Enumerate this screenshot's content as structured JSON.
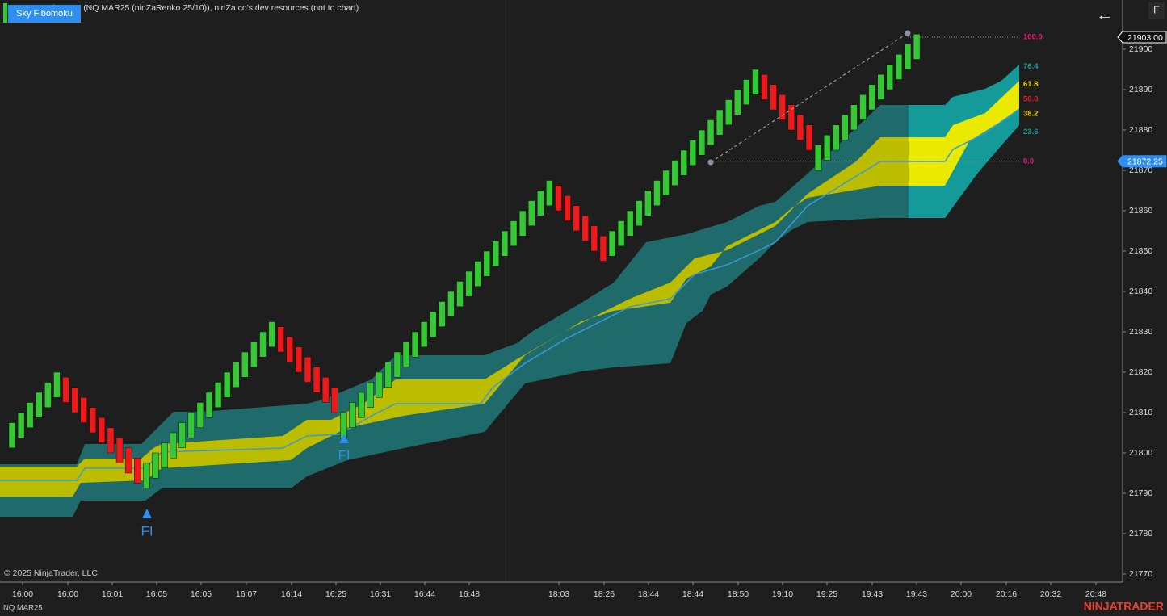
{
  "header": {
    "indicator_button": "Sky Fibomoku",
    "title": "ninZa.co (NQ MAR25 (ninZaRenko 25/10)), ninZa.co's dev resources (not to chart)"
  },
  "toolbar": {
    "back": "←",
    "f": "F"
  },
  "price_axis": {
    "ylim": [
      21768.2,
      21912.2
    ],
    "ticks": [
      21770,
      21780,
      21790,
      21800,
      21810,
      21820,
      21830,
      21840,
      21850,
      21860,
      21870,
      21880,
      21890,
      21900
    ],
    "flags": [
      {
        "value": 21903,
        "label": "21903.00"
      },
      {
        "value": 21872.25,
        "label": "21872.25"
      }
    ]
  },
  "time_axis": {
    "labels": [
      "16:00",
      "16:00",
      "16:01",
      "16:05",
      "16:05",
      "16:07",
      "16:14",
      "16:25",
      "16:31",
      "16:44",
      "16:48",
      "18:03",
      "18:26",
      "18:44",
      "18:44",
      "18:50",
      "19:10",
      "19:25",
      "19:43",
      "19:43",
      "20:00",
      "20:16",
      "20:32",
      "20:48"
    ]
  },
  "fib_levels": [
    {
      "value": 100,
      "label": "100.0",
      "color": "#e8187a"
    },
    {
      "value": 76.4,
      "label": "76.4",
      "color": "#1a9a9a"
    },
    {
      "value": 61.8,
      "label": "61.8",
      "color": "#f0d000"
    },
    {
      "value": 50,
      "label": "50.0",
      "color": "#e02424"
    },
    {
      "value": 38.2,
      "label": "38.2",
      "color": "#f0d000"
    },
    {
      "value": 23.6,
      "label": "23.6",
      "color": "#1a9a9a"
    },
    {
      "value": 0,
      "label": "0.0",
      "color": "#e8187a"
    }
  ],
  "candles": [
    [
      21801.25,
      21807.5
    ],
    [
      21803.75,
      21810
    ],
    [
      21806.25,
      21812.5
    ],
    [
      21808.75,
      21815
    ],
    [
      21811.25,
      21817.5
    ],
    [
      21813.75,
      21820
    ],
    [
      21818.75,
      21812.5
    ],
    [
      21816.25,
      21810
    ],
    [
      21813.75,
      21807.5
    ],
    [
      21811.25,
      21805
    ],
    [
      21808.75,
      21802.5
    ],
    [
      21806.25,
      21800
    ],
    [
      21803.75,
      21797.5
    ],
    [
      21801.25,
      21795
    ],
    [
      21798.75,
      21792.5
    ],
    [
      21791.25,
      21797.5
    ],
    [
      21793.75,
      21800
    ],
    [
      21796.25,
      21802.5
    ],
    [
      21798.75,
      21805
    ],
    [
      21801.25,
      21807.5
    ],
    [
      21803.75,
      21810
    ],
    [
      21806.25,
      21812.5
    ],
    [
      21808.75,
      21815
    ],
    [
      21811.25,
      21817.5
    ],
    [
      21813.75,
      21820
    ],
    [
      21816.25,
      21822.5
    ],
    [
      21818.75,
      21825
    ],
    [
      21821.25,
      21827.5
    ],
    [
      21823.75,
      21830
    ],
    [
      21826.25,
      21832.5
    ],
    [
      21831.25,
      21825
    ],
    [
      21828.75,
      21822.5
    ],
    [
      21826.25,
      21820
    ],
    [
      21823.75,
      21817.5
    ],
    [
      21821.25,
      21815
    ],
    [
      21818.75,
      21812.5
    ],
    [
      21816.25,
      21810
    ],
    [
      21803.75,
      21810
    ],
    [
      21806.25,
      21812.5
    ],
    [
      21808.75,
      21815
    ],
    [
      21811.25,
      21817.5
    ],
    [
      21813.75,
      21820
    ],
    [
      21816.25,
      21822.5
    ],
    [
      21818.75,
      21825
    ],
    [
      21821.25,
      21827.5
    ],
    [
      21823.75,
      21830
    ],
    [
      21826.25,
      21832.5
    ],
    [
      21828.75,
      21835
    ],
    [
      21831.25,
      21837.5
    ],
    [
      21833.75,
      21840
    ],
    [
      21836.25,
      21842.5
    ],
    [
      21838.75,
      21845
    ],
    [
      21841.25,
      21847.5
    ],
    [
      21843.75,
      21850
    ],
    [
      21846.25,
      21852.5
    ],
    [
      21848.75,
      21855
    ],
    [
      21851.25,
      21857.5
    ],
    [
      21853.75,
      21860
    ],
    [
      21856.25,
      21862.5
    ],
    [
      21858.75,
      21865
    ],
    [
      21861.25,
      21867.5
    ],
    [
      21866.25,
      21860
    ],
    [
      21863.75,
      21857.5
    ],
    [
      21861.25,
      21855
    ],
    [
      21858.75,
      21852.5
    ],
    [
      21856.25,
      21850
    ],
    [
      21853.75,
      21847.5
    ],
    [
      21848.75,
      21855
    ],
    [
      21851.25,
      21857.5
    ],
    [
      21853.75,
      21860
    ],
    [
      21856.25,
      21862.5
    ],
    [
      21858.75,
      21865
    ],
    [
      21861.25,
      21867.5
    ],
    [
      21863.75,
      21870
    ],
    [
      21866.25,
      21872.5
    ],
    [
      21868.75,
      21875
    ],
    [
      21871.25,
      21877.5
    ],
    [
      21873.75,
      21880
    ],
    [
      21876.25,
      21882.5
    ],
    [
      21878.75,
      21885
    ],
    [
      21881.25,
      21887.5
    ],
    [
      21883.75,
      21890
    ],
    [
      21886.25,
      21892.5
    ],
    [
      21888.75,
      21895
    ],
    [
      21893.75,
      21887.5
    ],
    [
      21891.25,
      21885
    ],
    [
      21888.75,
      21882.5
    ],
    [
      21886.25,
      21880
    ],
    [
      21883.75,
      21877.5
    ],
    [
      21881.25,
      21875
    ],
    [
      21870,
      21876.25
    ],
    [
      21872.5,
      21878.75
    ],
    [
      21875,
      21881.25
    ],
    [
      21877.5,
      21883.75
    ],
    [
      21880,
      21886.25
    ],
    [
      21882.5,
      21888.75
    ],
    [
      21885,
      21891.25
    ],
    [
      21887.5,
      21893.75
    ],
    [
      21890,
      21896.25
    ],
    [
      21892.5,
      21898.75
    ],
    [
      21895,
      21901.25
    ],
    [
      21897.5,
      21903.75
    ]
  ],
  "signals": [
    "FI",
    "FI"
  ],
  "footer": {
    "copyright": "© 2025 NinjaTrader, LLC",
    "instrument": "NQ MAR25",
    "brand": "NINJATRADER"
  }
}
